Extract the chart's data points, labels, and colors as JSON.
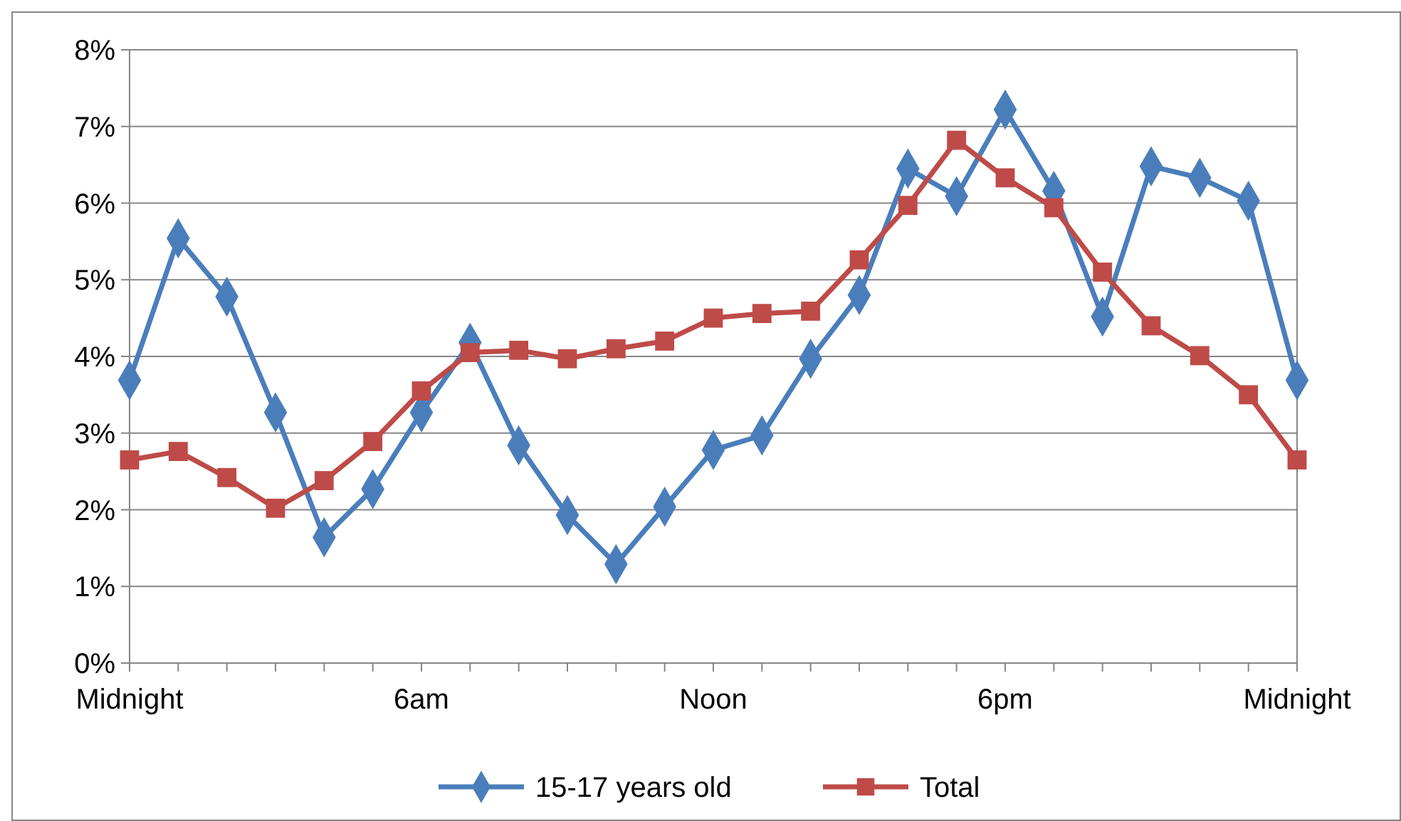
{
  "chart_data": {
    "type": "line",
    "categories": [
      "Midnight",
      null,
      null,
      null,
      null,
      null,
      "6am",
      null,
      null,
      null,
      null,
      null,
      "Noon",
      null,
      null,
      null,
      null,
      null,
      "6pm",
      null,
      null,
      null,
      null,
      null,
      "Midnight"
    ],
    "series": [
      {
        "name": "15-17 years old",
        "color": "#4a7ebb",
        "marker": "diamond",
        "values": [
          3.69,
          5.54,
          4.78,
          3.27,
          1.64,
          2.27,
          3.27,
          4.18,
          2.84,
          1.93,
          1.29,
          2.04,
          2.78,
          2.97,
          3.97,
          4.8,
          6.45,
          6.09,
          7.22,
          6.16,
          4.52,
          6.48,
          6.33,
          6.03,
          3.69
        ]
      },
      {
        "name": "Total",
        "color": "#be4b48",
        "marker": "square",
        "values": [
          2.65,
          2.76,
          2.42,
          2.02,
          2.38,
          2.89,
          3.55,
          4.05,
          4.08,
          3.97,
          4.1,
          4.2,
          4.5,
          4.56,
          4.59,
          5.26,
          5.97,
          6.82,
          6.33,
          5.94,
          5.1,
          4.4,
          4.01,
          3.5,
          2.65
        ]
      }
    ],
    "ylim": [
      0,
      8
    ],
    "yticks": [
      {
        "value": 0,
        "label": "0%"
      },
      {
        "value": 1,
        "label": "1%"
      },
      {
        "value": 2,
        "label": "2%"
      },
      {
        "value": 3,
        "label": "3%"
      },
      {
        "value": 4,
        "label": "4%"
      },
      {
        "value": 5,
        "label": "5%"
      },
      {
        "value": 6,
        "label": "6%"
      },
      {
        "value": 7,
        "label": "7%"
      },
      {
        "value": 8,
        "label": "8%"
      }
    ],
    "grid": "y",
    "legend": "bottom",
    "line_style": "solid"
  }
}
